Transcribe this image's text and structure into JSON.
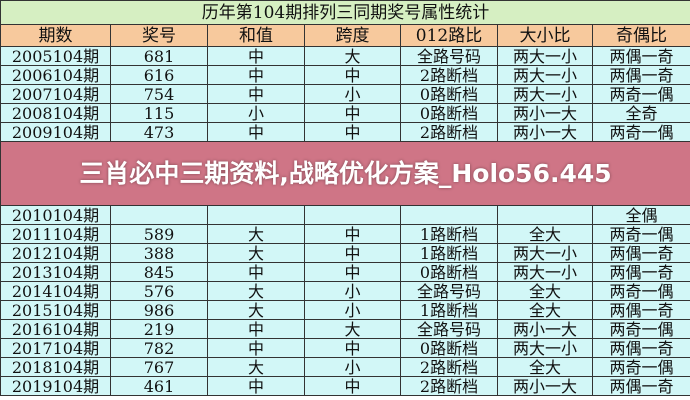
{
  "title": "历年第104期排列三同期奖号属性统计",
  "headers": [
    "期数",
    "奖号",
    "和值",
    "跨度",
    "012路比",
    "大小比",
    "奇偶比"
  ],
  "rows": [
    [
      "2005104期",
      "681",
      "中",
      "大",
      "全路号码",
      "两大一小",
      "两偶一奇"
    ],
    [
      "2006104期",
      "616",
      "中",
      "中",
      "2路断档",
      "两大一小",
      "两偶一奇"
    ],
    [
      "2007104期",
      "754",
      "中",
      "小",
      "0路断档",
      "两大一小",
      "两奇一偶"
    ],
    [
      "2008104期",
      "115",
      "小",
      "中",
      "0路断档",
      "两小一大",
      "全奇"
    ],
    [
      "2009104期",
      "473",
      "中",
      "中",
      "2路断档",
      "两小一大",
      "两奇一偶"
    ],
    [
      "2010104期",
      "",
      "",
      "",
      "",
      "",
      "全偶"
    ],
    [
      "2011104期",
      "589",
      "大",
      "中",
      "1路断档",
      "全大",
      "两奇一偶"
    ],
    [
      "2012104期",
      "388",
      "大",
      "中",
      "1路断档",
      "两大一小",
      "两偶一奇"
    ],
    [
      "2013104期",
      "845",
      "中",
      "中",
      "0路断档",
      "两大一小",
      "两偶一奇"
    ],
    [
      "2014104期",
      "576",
      "大",
      "小",
      "全路号码",
      "全大",
      "两奇一偶"
    ],
    [
      "2015104期",
      "986",
      "大",
      "小",
      "1路断档",
      "全大",
      "两偶一奇"
    ],
    [
      "2016104期",
      "219",
      "中",
      "大",
      "全路号码",
      "两小一大",
      "两奇一偶"
    ],
    [
      "2017104期",
      "782",
      "中",
      "中",
      "0路断档",
      "两大一小",
      "两偶一奇"
    ],
    [
      "2018104期",
      "767",
      "大",
      "小",
      "2路断档",
      "全大",
      "两奇一偶"
    ],
    [
      "2019104期",
      "461",
      "中",
      "中",
      "2路断档",
      "两小一大",
      "两偶一奇"
    ]
  ],
  "overlay_caption": "三肖必中三期资料,战略优化方案_Holo56.445",
  "colors": {
    "title_bg": "#d6efc2",
    "header_bg": "#f7c99d",
    "row_bg": "#d2f7f7",
    "overlay": "#b93750"
  }
}
